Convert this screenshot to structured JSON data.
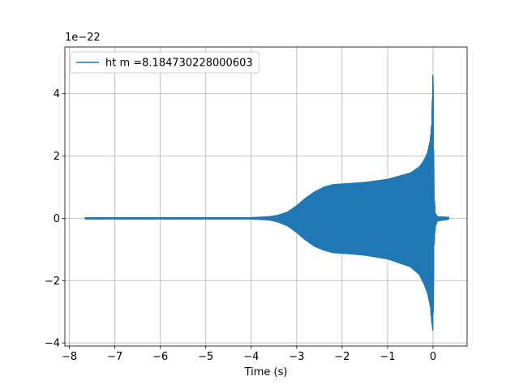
{
  "chart_data": {
    "type": "line",
    "title": "",
    "xlabel": "Time (s)",
    "ylabel": "",
    "y_offset_label": "1e−22",
    "xlim": [
      -8.1,
      0.75
    ],
    "ylim": [
      -4.1,
      5.5
    ],
    "x_ticks": [
      -8,
      -7,
      -6,
      -5,
      -4,
      -3,
      -2,
      -1,
      0
    ],
    "x_tick_labels": [
      "−8",
      "−7",
      "−6",
      "−5",
      "−4",
      "−3",
      "−2",
      "−1",
      "0"
    ],
    "y_ticks": [
      -4,
      -2,
      0,
      2,
      4
    ],
    "y_tick_labels": [
      "−4",
      "−2",
      "0",
      "2",
      "4"
    ],
    "grid": true,
    "legend_position": "top-left",
    "series": [
      {
        "name": "ht m =8.184730228000603",
        "color": "#1f77b4",
        "t_start": -7.65,
        "t_end": 0.35,
        "envelope": {
          "x": [
            -7.65,
            -4.5,
            -4.0,
            -3.6,
            -3.4,
            -3.2,
            -3.0,
            -2.8,
            -2.6,
            -2.4,
            -2.2,
            -2.0,
            -1.8,
            -1.5,
            -1.0,
            -0.5,
            -0.3,
            -0.2,
            -0.12,
            -0.06,
            -0.03,
            -0.01,
            0.0,
            0.02,
            0.05,
            0.1,
            0.35
          ],
          "upper": [
            0.02,
            0.02,
            0.02,
            0.05,
            0.1,
            0.2,
            0.4,
            0.65,
            0.85,
            1.0,
            1.08,
            1.1,
            1.12,
            1.15,
            1.25,
            1.45,
            1.65,
            1.85,
            2.1,
            2.5,
            3.0,
            4.0,
            5.05,
            0.8,
            0.15,
            0.05,
            0.03
          ],
          "lower": [
            -0.02,
            -0.02,
            -0.02,
            -0.05,
            -0.12,
            -0.24,
            -0.45,
            -0.7,
            -0.9,
            -1.02,
            -1.1,
            -1.12,
            -1.14,
            -1.18,
            -1.3,
            -1.55,
            -1.8,
            -2.1,
            -2.4,
            -2.8,
            -3.3,
            -3.5,
            -3.65,
            -0.9,
            -0.25,
            -0.08,
            -0.03
          ]
        }
      }
    ]
  }
}
